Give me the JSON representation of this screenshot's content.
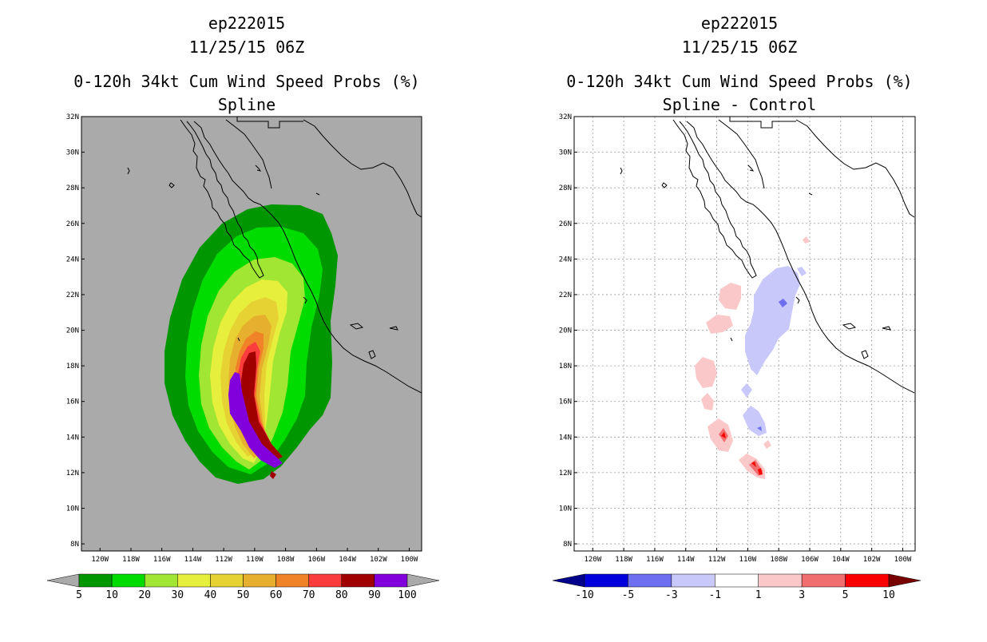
{
  "left_panel": {
    "title_line1": "ep222015",
    "title_line2": "11/25/15 06Z",
    "title_line3": "0-120h 34kt Cum Wind Speed Probs (%)",
    "subtitle": "Spline"
  },
  "right_panel": {
    "title_line1": "ep222015",
    "title_line2": "11/25/15 06Z",
    "title_line3": "0-120h 34kt Cum Wind Speed Probs (%)",
    "subtitle": "Spline - Control"
  },
  "axes": {
    "lat_labels": [
      "32N",
      "30N",
      "28N",
      "26N",
      "24N",
      "22N",
      "20N",
      "18N",
      "16N",
      "14N",
      "12N",
      "10N",
      "8N"
    ],
    "lon_labels": [
      "120W",
      "118W",
      "116W",
      "114W",
      "112W",
      "110W",
      "108W",
      "106W",
      "104W",
      "102W",
      "100W"
    ],
    "lat_range": [
      7.6,
      32
    ],
    "lon_range": [
      -121.2,
      -99.2
    ]
  },
  "colorbar_left": {
    "labels": [
      "5",
      "10",
      "20",
      "30",
      "40",
      "50",
      "60",
      "70",
      "80",
      "90",
      "100"
    ],
    "colors": [
      "#009600",
      "#00dc00",
      "#a0e632",
      "#e6f03c",
      "#e6d232",
      "#e6af2d",
      "#f08228",
      "#fa3c3c",
      "#a00000",
      "#8200dc"
    ],
    "under_color": "#aaaaaa",
    "over_color": "#aaaaaa"
  },
  "colorbar_right": {
    "labels": [
      "-10",
      "-5",
      "-3",
      "-1",
      "1",
      "3",
      "5",
      "10"
    ],
    "colors": [
      "#0000dc",
      "#6e6ef0",
      "#c8c8fa",
      "#ffffff",
      "#fac8c8",
      "#f06e6e",
      "#fa0000"
    ],
    "under_color": "#00008c",
    "over_color": "#780000"
  },
  "map_style": {
    "ocean_left": "#aaaaaa",
    "background_right": "#ffffff"
  }
}
